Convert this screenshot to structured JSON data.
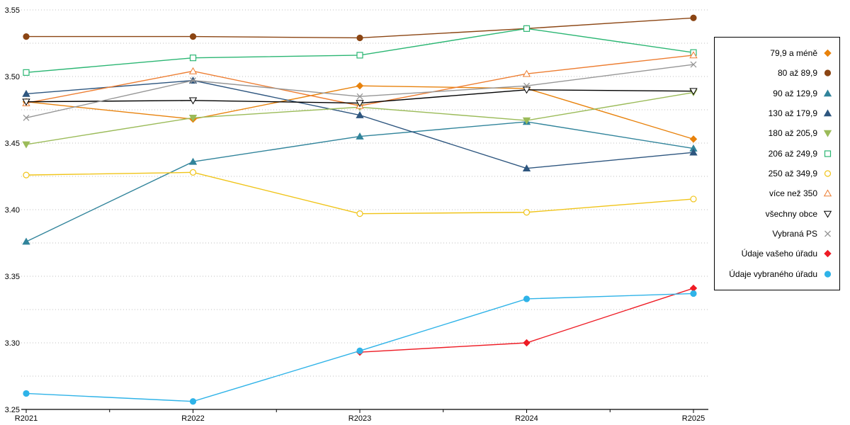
{
  "chart_data": {
    "type": "line",
    "title": "",
    "x_tick_labels": [
      "R2021",
      "R2022",
      "R2023",
      "R2024",
      "R2025"
    ],
    "y_tick_labels": [
      "3.25",
      "3.30",
      "3.35",
      "3.40",
      "3.45",
      "3.50",
      "3.55"
    ],
    "y_tick_values": [
      3.25,
      3.3,
      3.35,
      3.4,
      3.45,
      3.5,
      3.55
    ],
    "ylim": [
      3.25,
      3.55
    ],
    "grid": true,
    "grid_step": 0.025,
    "legend_position": "right",
    "series": [
      {
        "name": "79,9 a méně",
        "color": "#E8820C",
        "marker": "diamond",
        "filled": true,
        "values": [
          3.481,
          3.468,
          3.493,
          3.491,
          3.453
        ]
      },
      {
        "name": "80 až 89,9",
        "color": "#8B4513",
        "marker": "circle",
        "filled": true,
        "values": [
          3.53,
          3.53,
          3.529,
          3.536,
          3.544
        ]
      },
      {
        "name": "90 až 129,9",
        "color": "#31849B",
        "marker": "triangle-up",
        "filled": true,
        "values": [
          3.376,
          3.436,
          3.455,
          3.466,
          3.446
        ]
      },
      {
        "name": "130 až 179,9",
        "color": "#2E567F",
        "marker": "triangle-up",
        "filled": true,
        "values": [
          3.487,
          3.497,
          3.471,
          3.431,
          3.443
        ]
      },
      {
        "name": "180 až 205,9",
        "color": "#9BBB59",
        "marker": "triangle-down",
        "filled": true,
        "values": [
          3.449,
          3.469,
          3.477,
          3.467,
          3.488
        ]
      },
      {
        "name": "206 až 249,9",
        "color": "#2BB673",
        "marker": "square",
        "filled": false,
        "values": [
          3.503,
          3.514,
          3.516,
          3.536,
          3.518
        ]
      },
      {
        "name": "250 až 349,9",
        "color": "#F0C419",
        "marker": "circle",
        "filled": false,
        "values": [
          3.426,
          3.428,
          3.397,
          3.398,
          3.408
        ]
      },
      {
        "name": "více než 350",
        "color": "#ED7D31",
        "marker": "triangle-up",
        "filled": false,
        "values": [
          3.48,
          3.504,
          3.478,
          3.502,
          3.516
        ]
      },
      {
        "name": "všechny obce",
        "color": "#000000",
        "marker": "triangle-down",
        "filled": false,
        "values": [
          3.481,
          3.482,
          3.48,
          3.49,
          3.489
        ]
      },
      {
        "name": "Vybraná PS",
        "color": "#969696",
        "marker": "x",
        "filled": false,
        "values": [
          3.469,
          3.497,
          3.485,
          3.493,
          3.509
        ]
      },
      {
        "name": "Údaje vašeho úřadu",
        "color": "#EE1C25",
        "marker": "diamond",
        "filled": true,
        "values": [
          null,
          null,
          3.293,
          3.3,
          3.341
        ]
      },
      {
        "name": "Údaje vybraného úřadu",
        "color": "#2FB3E8",
        "marker": "circle",
        "filled": true,
        "values": [
          3.262,
          3.256,
          3.294,
          3.333,
          3.337
        ]
      }
    ]
  },
  "colors": {
    "background": "#ffffff",
    "grid": "#bfbfbf",
    "axis": "#000000",
    "tick_label": "#000000",
    "legend_border": "#000000"
  }
}
